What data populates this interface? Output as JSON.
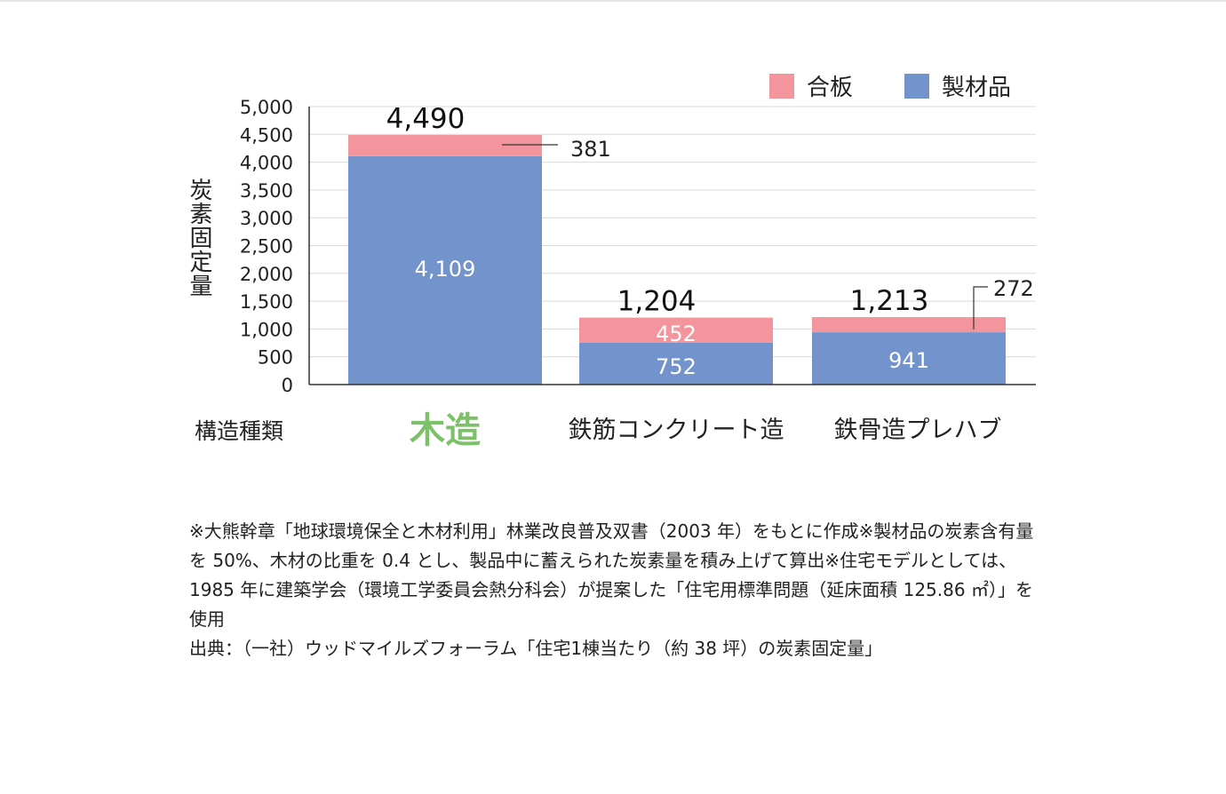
{
  "legend": {
    "items": [
      {
        "label": "合板",
        "color": "#f4949c"
      },
      {
        "label": "製材品",
        "color": "#7393cc"
      }
    ]
  },
  "yaxis_label": "炭素固定量",
  "xaxis_title": "構造種類",
  "chart_data": {
    "type": "bar",
    "stacked": true,
    "categories": [
      "木造",
      "鉄筋コンクリート造",
      "鉄骨造プレハブ"
    ],
    "series": [
      {
        "name": "製材品",
        "values": [
          4109,
          752,
          941
        ],
        "labels": [
          "4,109",
          "752",
          "941"
        ],
        "color": "#7393cc"
      },
      {
        "name": "合板",
        "values": [
          381,
          452,
          272
        ],
        "labels": [
          "381",
          "452",
          "272"
        ],
        "color": "#f4949c"
      }
    ],
    "totals": [
      "4,490",
      "1,204",
      "1,213"
    ],
    "yticks": [
      "0",
      "500",
      "1,000",
      "1,500",
      "2,000",
      "2,500",
      "3,000",
      "3,500",
      "4,000",
      "4,500",
      "5,000"
    ],
    "ylim": [
      0,
      5000
    ],
    "ylabel": "炭素固定量",
    "xlabel": "構造種類",
    "grid": true,
    "legend_position": "top-right",
    "highlight_color": "#7cc16a"
  },
  "notes": [
    "※大熊幹章「地球環境保全と木材利用」林業改良普及双書（2003 年）をもとに作成※製材品の炭素含有量を 50%、木材の比重を 0.4 とし、製品中に蓄えられた炭素量を積み上げて算出※住宅モデルとしては、1985 年に建築学会（環境工学委員会熱分科会）が提案した「住宅用標準問題（延床面積 125.86 ㎡）」を使用"
  ],
  "source": "出典：（一社）ウッドマイルズフォーラム「住宅1棟当たり（約 38 坪）の炭素固定量」"
}
